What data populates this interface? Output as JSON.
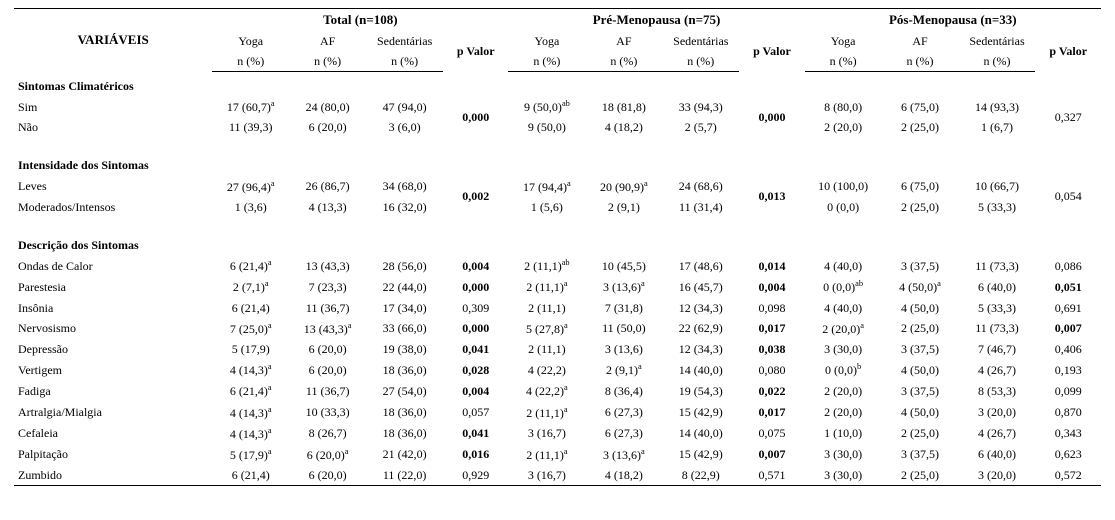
{
  "header": {
    "var_label": "VARIÁVEIS",
    "groups": [
      {
        "title": "Total (n=108)"
      },
      {
        "title": "Pré-Menopausa (n=75)"
      },
      {
        "title": "Pós-Menopausa (n=33)"
      }
    ],
    "subcols": [
      "Yoga",
      "AF",
      "Sedentárias"
    ],
    "subabbr": "n (%)",
    "pvalor": "p Valor"
  },
  "sections": {
    "sintomas_climatericos": {
      "title": "Sintomas Climatéricos",
      "rows": [
        {
          "label": "Sim",
          "g0": {
            "yoga": "17 (60,7)",
            "yoga_sup": "a",
            "af": "24 (80,0)",
            "sed": "47 (94,0)"
          },
          "g1": {
            "yoga": "9 (50,0)",
            "yoga_sup": "ab",
            "af": "18 (81,8)",
            "sed": "33 (94,3)"
          },
          "g2": {
            "yoga": "8 (80,0)",
            "af": "6 (75,0)",
            "sed": "14 (93,3)"
          }
        },
        {
          "label": "Não",
          "g0": {
            "yoga": "11 (39,3)",
            "af": "6 (20,0)",
            "sed": "3 (6,0)"
          },
          "g1": {
            "yoga": "9 (50,0)",
            "af": "4 (18,2)",
            "sed": "2 (5,7)"
          },
          "g2": {
            "yoga": "2 (20,0)",
            "af": "2 (25,0)",
            "sed": "1 (6,7)"
          }
        }
      ],
      "pvalues": {
        "g0": "0,000",
        "g0_bold": true,
        "g1": "0,000",
        "g1_bold": true,
        "g2": "0,327",
        "g2_bold": false
      }
    },
    "intensidade": {
      "title": "Intensidade dos Sintomas",
      "rows": [
        {
          "label": "Leves",
          "g0": {
            "yoga": "27 (96,4)",
            "yoga_sup": "a",
            "af": "26 (86,7)",
            "sed": "34 (68,0)"
          },
          "g1": {
            "yoga": "17 (94,4)",
            "yoga_sup": "a",
            "af": "20 (90,9)",
            "af_sup": "a",
            "sed": "24 (68,6)"
          },
          "g2": {
            "yoga": "10 (100,0)",
            "af": "6 (75,0)",
            "sed": "10 (66,7)"
          }
        },
        {
          "label": "Moderados/Intensos",
          "g0": {
            "yoga": "1 (3,6)",
            "af": "4 (13,3)",
            "sed": "16 (32,0)"
          },
          "g1": {
            "yoga": "1 (5,6)",
            "af": "2 (9,1)",
            "sed": "11 (31,4)"
          },
          "g2": {
            "yoga": "0 (0,0)",
            "af": "2 (25,0)",
            "sed": "5 (33,3)"
          }
        }
      ],
      "pvalues": {
        "g0": "0,002",
        "g0_bold": true,
        "g1": "0,013",
        "g1_bold": true,
        "g2": "0,054",
        "g2_bold": false
      }
    },
    "descricao": {
      "title": "Descrição dos Sintomas",
      "rows": [
        {
          "label": "Ondas de Calor",
          "g0": {
            "yoga": "6 (21,4)",
            "yoga_sup": "a",
            "af": "13 (43,3)",
            "sed": "28 (56,0)",
            "p": "0,004",
            "p_bold": true
          },
          "g1": {
            "yoga": "2 (11,1)",
            "yoga_sup": "ab",
            "af": "10 (45,5)",
            "sed": "17 (48,6)",
            "p": "0,014",
            "p_bold": true
          },
          "g2": {
            "yoga": "4 (40,0)",
            "af": "3 (37,5)",
            "sed": "11 (73,3)",
            "p": "0,086",
            "p_bold": false
          }
        },
        {
          "label": "Parestesia",
          "g0": {
            "yoga": "2 (7,1)",
            "yoga_sup": "a",
            "af": "7 (23,3)",
            "sed": "22 (44,0)",
            "p": "0,000",
            "p_bold": true
          },
          "g1": {
            "yoga": "2 (11,1)",
            "yoga_sup": "a",
            "af": "3 (13,6)",
            "af_sup": "a",
            "sed": "16 (45,7)",
            "p": "0,004",
            "p_bold": true
          },
          "g2": {
            "yoga": "0 (0,0)",
            "yoga_sup": "ab",
            "af": "4 (50,0)",
            "af_sup": "a",
            "sed": "6 (40,0)",
            "p": "0,051",
            "p_bold": true
          }
        },
        {
          "label": "Insônia",
          "g0": {
            "yoga": "6 (21,4)",
            "af": "11 (36,7)",
            "sed": "17 (34,0)",
            "p": "0,309",
            "p_bold": false
          },
          "g1": {
            "yoga": "2 (11,1)",
            "af": "7 (31,8)",
            "sed": "12 (34,3)",
            "p": "0,098",
            "p_bold": false
          },
          "g2": {
            "yoga": "4 (40,0)",
            "af": "4 (50,0)",
            "sed": "5 (33,3)",
            "p": "0,691",
            "p_bold": false
          }
        },
        {
          "label": "Nervosismo",
          "g0": {
            "yoga": "7 (25,0)",
            "yoga_sup": "a",
            "af": "13 (43,3)",
            "af_sup": "a",
            "sed": "33 (66,0)",
            "p": "0,000",
            "p_bold": true
          },
          "g1": {
            "yoga": "5 (27,8)",
            "yoga_sup": "a",
            "af": "11 (50,0)",
            "sed": "22 (62,9)",
            "p": "0,017",
            "p_bold": true
          },
          "g2": {
            "yoga": "2 (20,0)",
            "yoga_sup": "a",
            "af": "2 (25,0)",
            "sed": "11 (73,3)",
            "p": "0,007",
            "p_bold": true
          }
        },
        {
          "label": "Depressão",
          "g0": {
            "yoga": "5 (17,9)",
            "af": "6 (20,0)",
            "sed": "19 (38,0)",
            "p": "0,041",
            "p_bold": true
          },
          "g1": {
            "yoga": "2 (11,1)",
            "af": "3 (13,6)",
            "sed": "12 (34,3)",
            "p": "0,038",
            "p_bold": true
          },
          "g2": {
            "yoga": "3 (30,0)",
            "af": "3 (37,5)",
            "sed": "7 (46,7)",
            "p": "0,406",
            "p_bold": false
          }
        },
        {
          "label": "Vertigem",
          "g0": {
            "yoga": "4 (14,3)",
            "yoga_sup": "a",
            "af": "6 (20,0)",
            "sed": "18 (36,0)",
            "p": "0,028",
            "p_bold": true
          },
          "g1": {
            "yoga": "4 (22,2)",
            "af": "2 (9,1)",
            "af_sup": "a",
            "sed": "14 (40,0)",
            "p": "0,080",
            "p_bold": false
          },
          "g2": {
            "yoga": "0 (0,0)",
            "yoga_sup": "b",
            "af": "4 (50,0)",
            "sed": "4 (26,7)",
            "p": "0,193",
            "p_bold": false
          }
        },
        {
          "label": "Fadiga",
          "g0": {
            "yoga": "6 (21,4)",
            "yoga_sup": "a",
            "af": "11 (36,7)",
            "sed": "27 (54,0)",
            "p": "0,004",
            "p_bold": true
          },
          "g1": {
            "yoga": "4 (22,2)",
            "yoga_sup": "a",
            "af": "8 (36,4)",
            "sed": "19 (54,3)",
            "p": "0,022",
            "p_bold": true
          },
          "g2": {
            "yoga": "2 (20,0)",
            "af": "3 (37,5)",
            "sed": "8 (53,3)",
            "p": "0,099",
            "p_bold": false
          }
        },
        {
          "label": "Artralgia/Mialgia",
          "g0": {
            "yoga": "4 (14,3)",
            "yoga_sup": "a",
            "af": "10 (33,3)",
            "sed": "18 (36,0)",
            "p": "0,057",
            "p_bold": false
          },
          "g1": {
            "yoga": "2 (11,1)",
            "yoga_sup": "a",
            "af": "6 (27,3)",
            "sed": "15 (42,9)",
            "p": "0,017",
            "p_bold": true
          },
          "g2": {
            "yoga": "2 (20,0)",
            "af": "4 (50,0)",
            "sed": "3 (20,0)",
            "p": "0,870",
            "p_bold": false
          }
        },
        {
          "label": "Cefaleia",
          "g0": {
            "yoga": "4 (14,3)",
            "yoga_sup": "a",
            "af": "8 (26,7)",
            "sed": "18 (36,0)",
            "p": "0,041",
            "p_bold": true
          },
          "g1": {
            "yoga": "3 (16,7)",
            "af": "6 (27,3)",
            "sed": "14 (40,0)",
            "p": "0,075",
            "p_bold": false
          },
          "g2": {
            "yoga": "1 (10,0)",
            "af": "2 (25,0)",
            "sed": "4 (26,7)",
            "p": "0,343",
            "p_bold": false
          }
        },
        {
          "label": "Palpitação",
          "g0": {
            "yoga": "5 (17,9)",
            "yoga_sup": "a",
            "af": "6 (20,0)",
            "af_sup": "a",
            "sed": "21 (42,0)",
            "p": "0,016",
            "p_bold": true
          },
          "g1": {
            "yoga": "2 (11,1)",
            "yoga_sup": "a",
            "af": "3 (13,6)",
            "af_sup": "a",
            "sed": "15 (42,9)",
            "p": "0,007",
            "p_bold": true
          },
          "g2": {
            "yoga": "3 (30,0)",
            "af": "3 (37,5)",
            "sed": "6 (40,0)",
            "p": "0,623",
            "p_bold": false
          }
        },
        {
          "label": "Zumbido",
          "g0": {
            "yoga": "6 (21,4)",
            "af": "6 (20,0)",
            "sed": "11 (22,0)",
            "p": "0,929",
            "p_bold": false
          },
          "g1": {
            "yoga": "3 (16,7)",
            "af": "4 (18,2)",
            "sed": "8 (22,9)",
            "p": "0,571",
            "p_bold": false
          },
          "g2": {
            "yoga": "3 (30,0)",
            "af": "2 (25,0)",
            "sed": "3 (20,0)",
            "p": "0,572",
            "p_bold": false
          }
        }
      ]
    }
  }
}
